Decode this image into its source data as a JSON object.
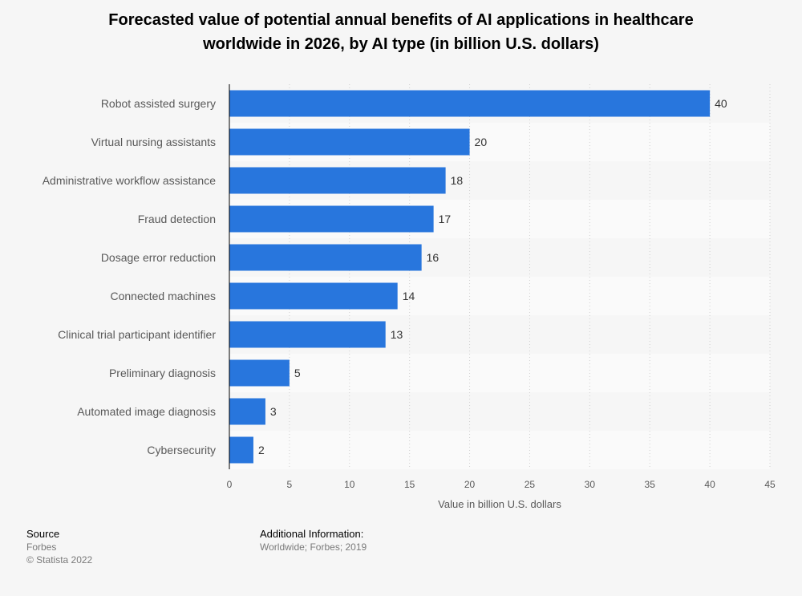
{
  "title_line1": "Forecasted value of potential annual benefits of AI applications in healthcare",
  "title_line2": "worldwide in 2026, by AI type (in billion U.S. dollars)",
  "chart_data": {
    "type": "bar",
    "orientation": "horizontal",
    "categories": [
      "Robot assisted surgery",
      "Virtual nursing assistants",
      "Administrative workflow assistance",
      "Fraud detection",
      "Dosage error reduction",
      "Connected machines",
      "Clinical trial participant identifier",
      "Preliminary diagnosis",
      "Automated image diagnosis",
      "Cybersecurity"
    ],
    "values": [
      40,
      20,
      18,
      17,
      16,
      14,
      13,
      5,
      3,
      2
    ],
    "xlabel": "Value in billion U.S. dollars",
    "xlim": [
      0,
      45
    ],
    "xticks": [
      0,
      5,
      10,
      15,
      20,
      25,
      30,
      35,
      40,
      45
    ],
    "grid": true,
    "bar_color": "#2876dd"
  },
  "footer": {
    "source_heading": "Source",
    "source_name": "Forbes",
    "copyright": "© Statista 2022",
    "info_heading": "Additional Information:",
    "info_text": "Worldwide; Forbes; 2019"
  }
}
